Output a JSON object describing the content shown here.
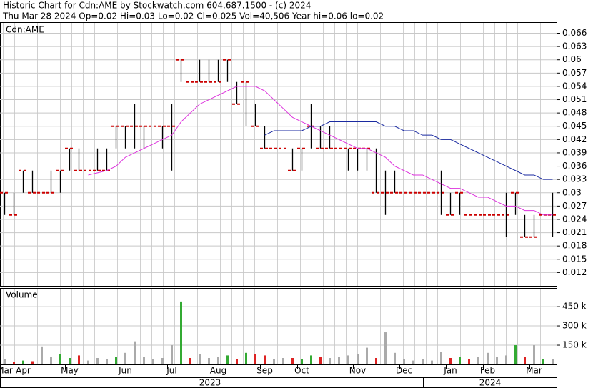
{
  "chart_data": {
    "type": "hlc",
    "title": "Historic Chart for Cdn:AME by Stockwatch.com 604.687.1500 - (c) 2024",
    "subtitle": "Thu Mar 28 2024  Op=0.02  Hi=0.03  Lo=0.02  Cl=0.025  Vol=40,506  Year hi=0.06  lo=0.02",
    "label": "Cdn:AME",
    "categories": [
      "Mar",
      null,
      "Apr",
      null,
      null,
      null,
      null,
      "May",
      null,
      null,
      null,
      null,
      null,
      "Jun",
      null,
      null,
      null,
      null,
      "Jul",
      null,
      null,
      null,
      null,
      "Aug",
      null,
      null,
      null,
      null,
      "Sep",
      null,
      null,
      null,
      "Oct",
      null,
      null,
      null,
      null,
      null,
      "Nov",
      null,
      null,
      null,
      null,
      "Dec",
      null,
      null,
      null,
      null,
      "Jan",
      null,
      null,
      null,
      "Feb",
      null,
      null,
      null,
      null,
      "Mar",
      null,
      null
    ],
    "years": [
      "2023",
      "2024"
    ],
    "high": [
      0.03,
      0.03,
      0.035,
      0.035,
      0.03,
      0.035,
      0.035,
      0.04,
      0.04,
      0.035,
      0.04,
      0.04,
      0.045,
      0.045,
      0.05,
      0.045,
      0.045,
      0.045,
      0.05,
      0.06,
      0.055,
      0.06,
      0.06,
      0.06,
      0.06,
      0.055,
      0.055,
      0.05,
      0.045,
      0.04,
      0.04,
      0.04,
      0.04,
      0.05,
      0.045,
      0.045,
      0.04,
      0.04,
      0.04,
      0.04,
      0.04,
      0.035,
      0.035,
      0.03,
      0.03,
      0.03,
      0.03,
      0.035,
      0.03,
      0.03,
      0.025,
      0.025,
      0.025,
      0.025,
      0.03,
      0.03,
      0.025,
      0.025,
      0.025,
      0.03
    ],
    "low": [
      0.025,
      0.025,
      0.03,
      0.03,
      0.03,
      0.03,
      0.03,
      0.035,
      0.035,
      0.035,
      0.035,
      0.035,
      0.04,
      0.04,
      0.04,
      0.04,
      0.045,
      0.04,
      0.035,
      0.055,
      0.055,
      0.055,
      0.055,
      0.055,
      0.055,
      0.05,
      0.045,
      0.045,
      0.04,
      0.04,
      0.04,
      0.035,
      0.035,
      0.04,
      0.04,
      0.04,
      0.04,
      0.035,
      0.035,
      0.035,
      0.03,
      0.025,
      0.03,
      0.03,
      0.03,
      0.03,
      0.03,
      0.025,
      0.025,
      0.025,
      0.025,
      0.025,
      0.025,
      0.025,
      0.02,
      0.025,
      0.02,
      0.02,
      0.025,
      0.02
    ],
    "close": [
      0.03,
      0.025,
      0.035,
      0.03,
      0.03,
      0.03,
      0.035,
      0.04,
      0.035,
      0.035,
      0.035,
      0.035,
      0.045,
      0.045,
      0.045,
      0.045,
      0.045,
      0.045,
      0.045,
      0.06,
      0.055,
      0.055,
      0.055,
      0.055,
      0.06,
      0.05,
      0.055,
      0.045,
      0.04,
      0.04,
      0.04,
      0.035,
      0.04,
      0.045,
      0.04,
      0.04,
      0.04,
      0.04,
      0.04,
      0.04,
      0.03,
      0.03,
      0.03,
      0.03,
      0.03,
      0.03,
      0.03,
      0.03,
      0.025,
      0.03,
      0.025,
      0.025,
      0.025,
      0.025,
      0.025,
      0.03,
      0.02,
      0.02,
      0.025,
      0.025
    ],
    "bar_color": "#000000",
    "close_color": "#cc0000",
    "moving_averages": [
      {
        "color": "#dd33dd",
        "values": [
          null,
          null,
          null,
          null,
          null,
          null,
          null,
          null,
          null,
          0.034,
          0.0345,
          0.035,
          0.036,
          0.038,
          0.039,
          0.04,
          0.041,
          0.042,
          0.043,
          0.046,
          0.048,
          0.05,
          0.051,
          0.052,
          0.053,
          0.054,
          0.054,
          0.054,
          0.053,
          0.051,
          0.049,
          0.047,
          0.046,
          0.045,
          0.044,
          0.043,
          0.042,
          0.041,
          0.04,
          0.04,
          0.039,
          0.038,
          0.036,
          0.035,
          0.034,
          0.034,
          0.033,
          0.032,
          0.031,
          0.031,
          0.03,
          0.029,
          0.029,
          0.028,
          0.027,
          0.027,
          0.026,
          0.026,
          0.025,
          0.025
        ]
      },
      {
        "color": "#1a2aa0",
        "values": [
          null,
          null,
          null,
          null,
          null,
          null,
          null,
          null,
          null,
          null,
          null,
          null,
          null,
          null,
          null,
          null,
          null,
          null,
          null,
          null,
          null,
          null,
          null,
          null,
          null,
          null,
          null,
          null,
          0.043,
          0.044,
          0.044,
          0.044,
          0.044,
          0.045,
          0.045,
          0.046,
          0.046,
          0.046,
          0.046,
          0.046,
          0.046,
          0.045,
          0.045,
          0.044,
          0.044,
          0.043,
          0.043,
          0.042,
          0.042,
          0.041,
          0.04,
          0.039,
          0.038,
          0.037,
          0.036,
          0.035,
          0.034,
          0.034,
          0.033,
          0.033
        ]
      }
    ],
    "ylim": [
      0.009,
      0.0685
    ],
    "yticks": [
      0.012,
      0.015,
      0.018,
      0.021,
      0.024,
      0.027,
      0.03,
      0.033,
      0.036,
      0.039,
      0.042,
      0.045,
      0.048,
      0.051,
      0.054,
      0.057,
      0.06,
      0.063,
      0.066
    ],
    "grid": true,
    "volume": {
      "title": "Volume",
      "values": [
        40000,
        20000,
        30000,
        25000,
        140000,
        60000,
        80000,
        50000,
        70000,
        30000,
        50000,
        40000,
        60000,
        90000,
        180000,
        60000,
        40000,
        50000,
        150000,
        490000,
        50000,
        80000,
        50000,
        60000,
        70000,
        40000,
        90000,
        80000,
        70000,
        40000,
        50000,
        50000,
        40000,
        70000,
        60000,
        50000,
        60000,
        70000,
        80000,
        130000,
        50000,
        250000,
        90000,
        40000,
        30000,
        40000,
        30000,
        100000,
        50000,
        60000,
        40000,
        60000,
        90000,
        60000,
        70000,
        150000,
        60000,
        150000,
        40000,
        40000
      ],
      "up_color": "#33aa33",
      "down_color": "#dd2222",
      "flat_color": "#aaaaaa",
      "ylim": [
        0,
        595000
      ],
      "yticks": [
        {
          "value": 150000,
          "label": "150 k"
        },
        {
          "value": 300000,
          "label": "300 k"
        },
        {
          "value": 450000,
          "label": "450 k"
        }
      ]
    }
  }
}
